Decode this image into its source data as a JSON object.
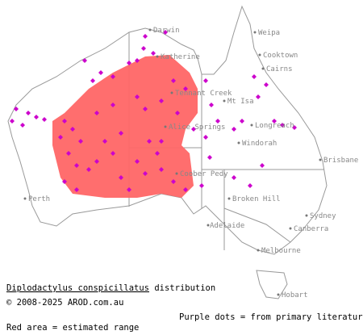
{
  "map": {
    "cities": [
      "Darwin",
      "Katherine",
      "Weipa",
      "Cooktown",
      "Cairns",
      "Tennant Creek",
      "Mt Isa",
      "Longreach",
      "Alice Springs",
      "Windorah",
      "Coober Pedy",
      "Broken Hill",
      "Brisbane",
      "Perth",
      "Adelaide",
      "Sydney",
      "Canberra",
      "Melbourne",
      "Hobart"
    ]
  },
  "caption": {
    "species": "Diplodactylus conspicillatus",
    "suffix": "distribution",
    "copyright": "© 2008-2025 AROD.com.au",
    "dots_note": "Purple dots = from primary literature",
    "area_note": "Red area = estimated range"
  }
}
